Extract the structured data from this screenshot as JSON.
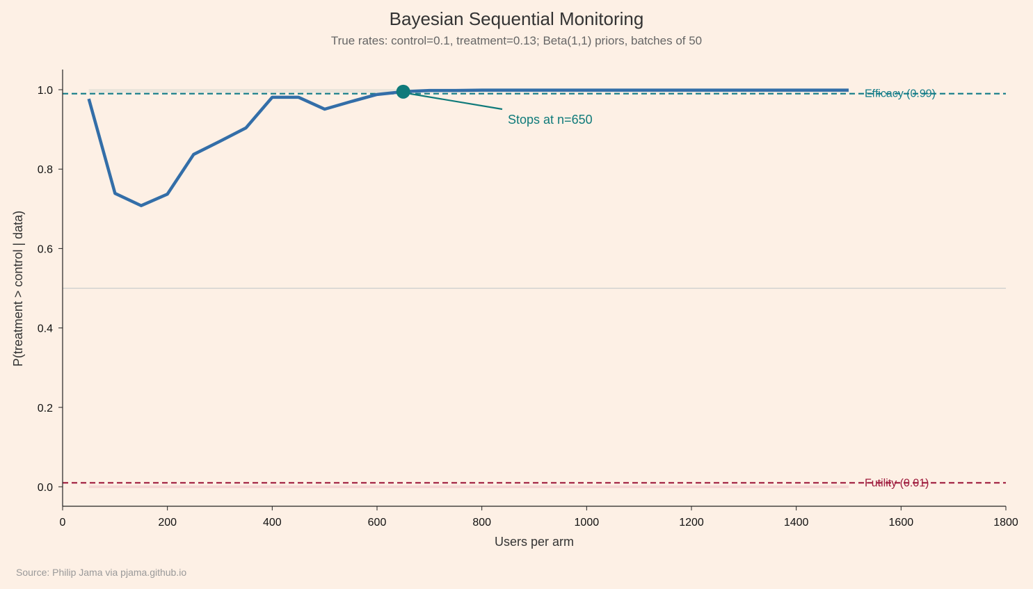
{
  "chart_data": {
    "type": "line",
    "title": "Bayesian Sequential Monitoring",
    "subtitle": "True rates: control=0.1, treatment=0.13; Beta(1,1) priors, batches of 50",
    "xlabel": "Users per arm",
    "ylabel": "P(treatment > control | data)",
    "xlim": [
      0,
      1800
    ],
    "ylim": [
      -0.05,
      1.05
    ],
    "xticks": [
      0,
      200,
      400,
      600,
      800,
      1000,
      1200,
      1400,
      1600,
      1800
    ],
    "yticks": [
      "0.0",
      "0.2",
      "0.4",
      "0.6",
      "0.8",
      "1.0"
    ],
    "x": [
      50,
      100,
      150,
      200,
      250,
      300,
      350,
      400,
      450,
      500,
      550,
      600,
      650,
      700,
      750,
      800,
      850,
      900,
      950,
      1000,
      1050,
      1100,
      1150,
      1200,
      1250,
      1300,
      1350,
      1400,
      1450,
      1500
    ],
    "y": [
      0.977,
      0.739,
      0.708,
      0.737,
      0.837,
      0.87,
      0.904,
      0.981,
      0.981,
      0.951,
      0.97,
      0.988,
      0.995,
      0.998,
      0.998,
      0.999,
      0.999,
      0.999,
      0.999,
      0.999,
      0.999,
      0.999,
      0.999,
      0.999,
      0.999,
      0.999,
      0.999,
      0.999,
      0.999,
      0.999
    ],
    "line_color": "#336ea8",
    "reference_lines": [
      {
        "label": "Efficacy (0.99)",
        "y": 0.99,
        "color": "#0f7a87",
        "style": "dashed"
      },
      {
        "label": "Futility (0.01)",
        "y": 0.01,
        "color": "#9e1a3c",
        "style": "dashed"
      },
      {
        "y": 0.5,
        "color": "#cccccc",
        "style": "solid"
      }
    ],
    "annotation": {
      "text": "Stops at n=650",
      "x": 650,
      "y": 0.995,
      "color": "#0f7a7a"
    },
    "grid": false
  },
  "source": "Source: Philip Jama via pjama.github.io"
}
